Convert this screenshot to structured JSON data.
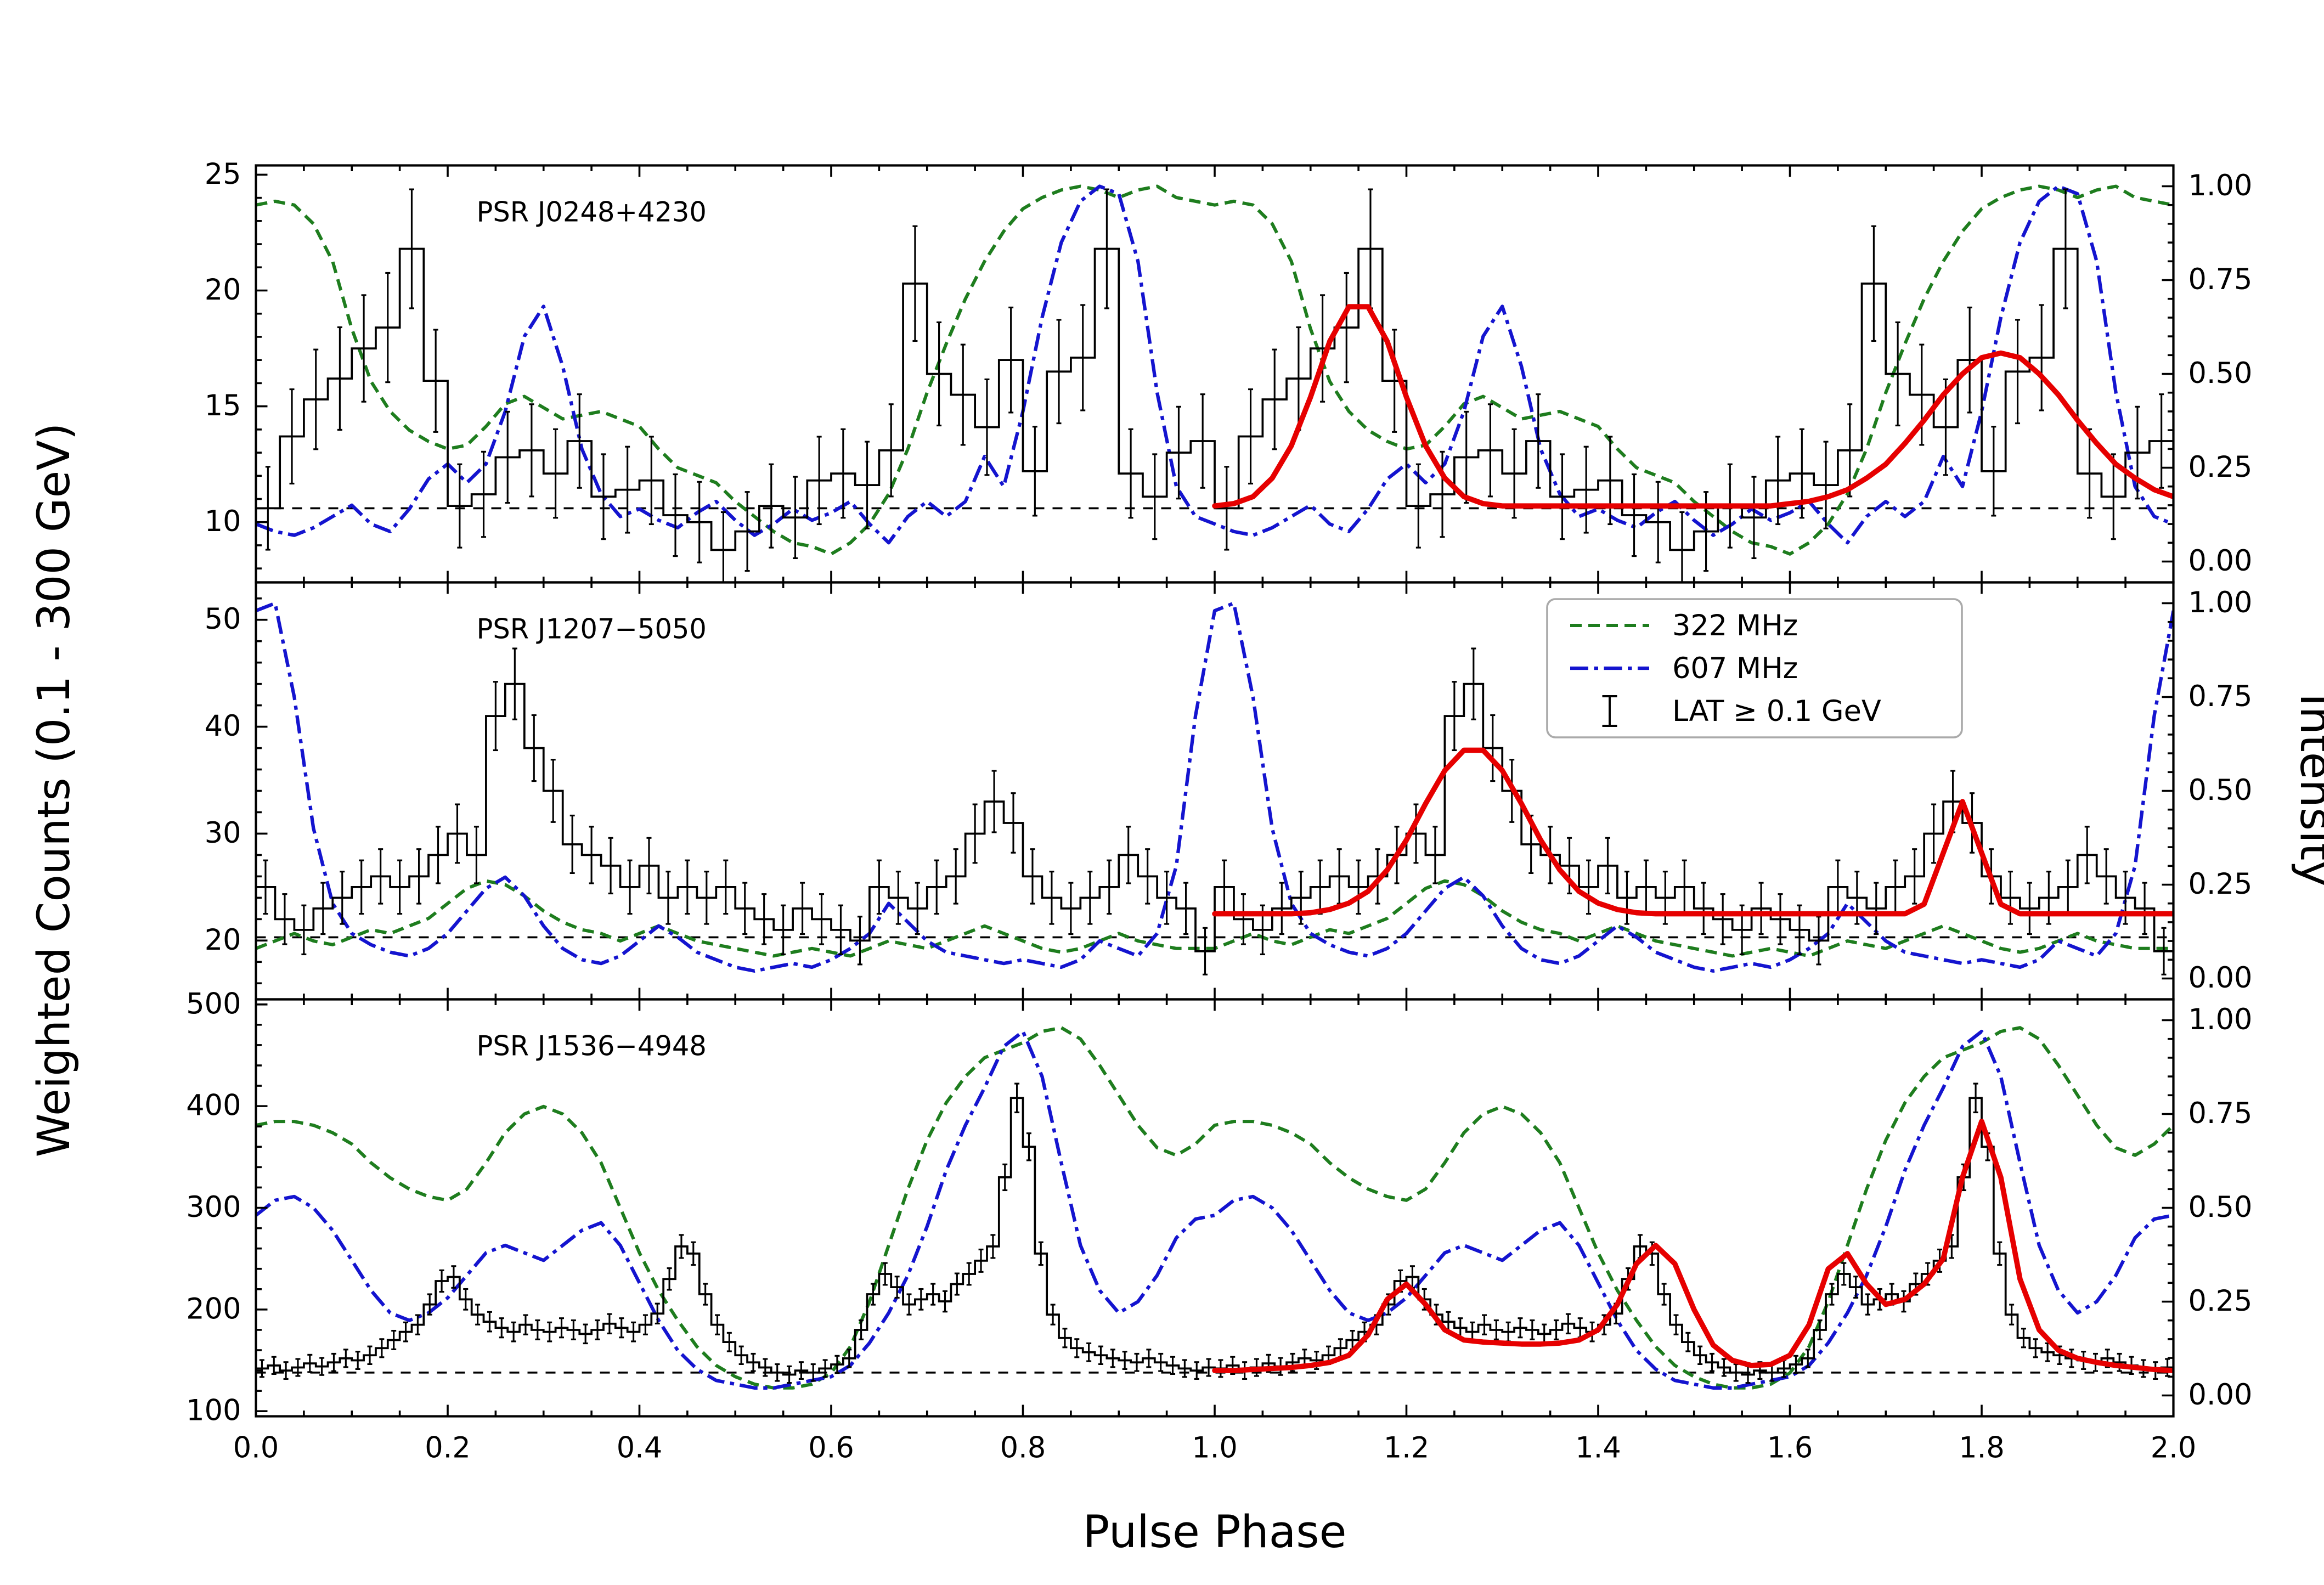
{
  "figure": {
    "xlabel": "Pulse Phase",
    "ylabel_left": "Weighted Counts (0.1 - 300 GeV)",
    "ylabel_right": "Intensity",
    "x_ticks": [
      0.0,
      0.2,
      0.4,
      0.6,
      0.8,
      1.0,
      1.2,
      1.4,
      1.6,
      1.8,
      2.0
    ],
    "x_tick_labels": [
      "0.0",
      "0.2",
      "0.4",
      "0.6",
      "0.8",
      "1.0",
      "1.2",
      "1.4",
      "1.6",
      "1.8",
      "2.0"
    ],
    "intensity_ticks": [
      0.0,
      0.25,
      0.5,
      0.75,
      1.0
    ],
    "intensity_tick_labels": [
      "0.00",
      "0.25",
      "0.50",
      "0.75",
      "1.00"
    ],
    "colors": {
      "radio_322": "#1e7d1e",
      "radio_607": "#1414cf",
      "fit": "#e60000",
      "lat": "#000000",
      "background_line": "#000000"
    },
    "legend": {
      "items": [
        {
          "label": "322 MHz",
          "style": "dashed-green"
        },
        {
          "label": "607 MHz",
          "style": "dashdot-blue"
        },
        {
          "label": "LAT ≥ 0.1 GeV",
          "style": "errorbar-black"
        }
      ]
    }
  },
  "chart_data": [
    {
      "type": "histogram+line",
      "name": "J0248+4230",
      "title": "PSR J0248+4230",
      "x_range": [
        0,
        2
      ],
      "periodic": true,
      "ylim": [
        7.4,
        25.4
      ],
      "yticks": [
        10,
        15,
        20,
        25
      ],
      "ytick_labels": [
        "10",
        "15",
        "20",
        "25"
      ],
      "y_minor_step": 1,
      "background_level": 10.6,
      "hist": {
        "bin_width": 0.025,
        "err_factor": 0.55,
        "values": [
          10.6,
          13.7,
          15.3,
          16.2,
          17.5,
          18.4,
          21.8,
          16.1,
          10.7,
          11.2,
          12.8,
          13.1,
          12.1,
          13.5,
          11.1,
          11.4,
          11.8,
          10.3,
          10.0,
          8.8,
          9.6,
          10.7,
          10.2,
          11.8,
          12.1,
          11.6,
          13.1,
          20.3,
          16.4,
          15.5,
          14.1,
          17.0,
          12.2,
          16.5,
          17.1,
          21.8,
          12.1,
          11.1,
          13.0,
          13.5
        ]
      },
      "radio_322": {
        "phase_step": 0.02,
        "values": [
          0.95,
          0.96,
          0.95,
          0.9,
          0.8,
          0.62,
          0.48,
          0.4,
          0.35,
          0.32,
          0.3,
          0.31,
          0.36,
          0.42,
          0.44,
          0.41,
          0.38,
          0.39,
          0.4,
          0.38,
          0.36,
          0.3,
          0.25,
          0.23,
          0.21,
          0.16,
          0.12,
          0.08,
          0.05,
          0.04,
          0.02,
          0.05,
          0.1,
          0.18,
          0.3,
          0.45,
          0.58,
          0.7,
          0.8,
          0.88,
          0.94,
          0.97,
          0.99,
          1.0,
          0.99,
          0.97,
          0.99,
          1.0,
          0.97,
          0.96,
          0.95
        ]
      },
      "radio_607": {
        "phase_step": 0.02,
        "values": [
          0.1,
          0.08,
          0.07,
          0.09,
          0.12,
          0.15,
          0.1,
          0.08,
          0.14,
          0.22,
          0.26,
          0.21,
          0.26,
          0.4,
          0.6,
          0.68,
          0.52,
          0.3,
          0.18,
          0.12,
          0.14,
          0.11,
          0.09,
          0.13,
          0.16,
          0.11,
          0.07,
          0.1,
          0.14,
          0.11,
          0.13,
          0.16,
          0.1,
          0.05,
          0.12,
          0.16,
          0.12,
          0.16,
          0.28,
          0.2,
          0.4,
          0.65,
          0.85,
          0.96,
          1.0,
          0.98,
          0.8,
          0.45,
          0.2,
          0.12,
          0.1
        ]
      },
      "fit": {
        "x_start": 1.0,
        "phase_step": 0.02,
        "values": [
          10.7,
          10.8,
          11.1,
          11.9,
          13.3,
          15.4,
          17.8,
          19.3,
          19.3,
          17.8,
          15.4,
          13.3,
          11.9,
          11.1,
          10.8,
          10.7,
          10.7,
          10.7,
          10.7,
          10.7,
          10.7,
          10.7,
          10.7,
          10.7,
          10.7,
          10.7,
          10.7,
          10.7,
          10.7,
          10.7,
          10.8,
          10.9,
          11.1,
          11.4,
          11.9,
          12.5,
          13.4,
          14.4,
          15.5,
          16.4,
          17.1,
          17.3,
          17.1,
          16.4,
          15.5,
          14.4,
          13.4,
          12.5,
          11.9,
          11.4,
          11.1
        ]
      }
    },
    {
      "type": "histogram+line",
      "name": "J1207-5050",
      "title": "PSR J1207−5050",
      "x_range": [
        0,
        2
      ],
      "periodic": true,
      "ylim": [
        14.5,
        53.5
      ],
      "yticks": [
        20,
        30,
        40,
        50
      ],
      "ytick_labels": [
        "20",
        "30",
        "40",
        "50"
      ],
      "y_minor_step": 2,
      "background_level": 20.3,
      "hist": {
        "bin_width": 0.02,
        "err_factor": 0.5,
        "values": [
          25,
          22,
          21,
          23,
          24,
          25,
          26,
          25,
          26,
          28,
          30,
          28,
          41,
          44,
          38,
          34,
          29,
          28,
          27,
          25,
          27,
          24,
          25,
          24,
          25,
          23,
          22,
          21,
          23,
          22,
          21,
          20,
          25,
          24,
          23,
          25,
          26,
          30,
          33,
          31,
          26,
          24,
          23,
          24,
          25,
          28,
          26,
          24,
          23,
          19
        ]
      },
      "radio_322": {
        "phase_step": 0.02,
        "values": [
          0.08,
          0.1,
          0.12,
          0.1,
          0.09,
          0.11,
          0.13,
          0.12,
          0.14,
          0.16,
          0.2,
          0.24,
          0.26,
          0.25,
          0.22,
          0.18,
          0.15,
          0.13,
          0.12,
          0.1,
          0.12,
          0.14,
          0.12,
          0.1,
          0.09,
          0.08,
          0.07,
          0.06,
          0.07,
          0.08,
          0.07,
          0.06,
          0.08,
          0.1,
          0.09,
          0.08,
          0.1,
          0.12,
          0.14,
          0.12,
          0.1,
          0.08,
          0.07,
          0.08,
          0.1,
          0.12,
          0.1,
          0.09,
          0.08,
          0.08,
          0.08
        ]
      },
      "radio_607": {
        "phase_step": 0.02,
        "values": [
          0.98,
          1.0,
          0.75,
          0.4,
          0.2,
          0.12,
          0.09,
          0.07,
          0.06,
          0.08,
          0.12,
          0.18,
          0.24,
          0.27,
          0.22,
          0.14,
          0.08,
          0.05,
          0.04,
          0.06,
          0.1,
          0.14,
          0.11,
          0.07,
          0.05,
          0.03,
          0.02,
          0.03,
          0.04,
          0.03,
          0.05,
          0.08,
          0.12,
          0.2,
          0.15,
          0.1,
          0.07,
          0.06,
          0.05,
          0.04,
          0.05,
          0.04,
          0.03,
          0.05,
          0.1,
          0.08,
          0.06,
          0.12,
          0.3,
          0.7,
          0.98
        ]
      },
      "fit": {
        "x_start": 1.0,
        "phase_step": 0.02,
        "values": [
          22.5,
          22.5,
          22.5,
          22.5,
          22.5,
          22.6,
          22.9,
          23.5,
          24.6,
          26.6,
          29.4,
          32.8,
          35.9,
          37.8,
          37.8,
          35.9,
          32.8,
          29.4,
          26.6,
          24.6,
          23.5,
          22.9,
          22.6,
          22.5,
          22.5,
          22.5,
          22.5,
          22.5,
          22.5,
          22.5,
          22.5,
          22.5,
          22.5,
          22.5,
          22.5,
          22.5,
          22.5,
          23.4,
          28.2,
          33.0,
          28.2,
          23.4,
          22.5,
          22.5,
          22.5,
          22.5,
          22.5,
          22.5,
          22.5,
          22.5,
          22.5
        ]
      }
    },
    {
      "type": "histogram+line",
      "name": "J1536-4948",
      "title": "PSR J1536−4948",
      "x_range": [
        0,
        2
      ],
      "periodic": true,
      "ylim": [
        95,
        505
      ],
      "yticks": [
        100,
        200,
        300,
        400,
        500
      ],
      "ytick_labels": [
        "100",
        "200",
        "300",
        "400",
        "500"
      ],
      "y_minor_step": 20,
      "background_level": 138,
      "hist": {
        "bin_width": 0.0125,
        "err_factor": 0.7,
        "values": [
          142,
          145,
          140,
          143,
          147,
          144,
          148,
          152,
          150,
          155,
          162,
          170,
          178,
          185,
          205,
          228,
          232,
          210,
          195,
          188,
          182,
          178,
          185,
          180,
          178,
          182,
          180,
          176,
          180,
          186,
          182,
          178,
          185,
          196,
          230,
          262,
          255,
          215,
          185,
          168,
          155,
          148,
          143,
          138,
          136,
          140,
          138,
          142,
          146,
          152,
          180,
          215,
          235,
          222,
          205,
          210,
          215,
          208,
          225,
          235,
          248,
          262,
          330,
          408,
          360,
          255,
          195,
          172,
          162,
          158,
          155,
          152,
          150,
          148,
          152,
          148,
          145,
          142,
          140,
          143
        ]
      },
      "radio_322": {
        "phase_step": 0.02,
        "values": [
          0.72,
          0.73,
          0.73,
          0.72,
          0.7,
          0.67,
          0.62,
          0.58,
          0.55,
          0.53,
          0.52,
          0.55,
          0.62,
          0.7,
          0.75,
          0.77,
          0.75,
          0.7,
          0.62,
          0.5,
          0.38,
          0.28,
          0.2,
          0.13,
          0.08,
          0.05,
          0.03,
          0.02,
          0.02,
          0.03,
          0.06,
          0.13,
          0.25,
          0.4,
          0.55,
          0.68,
          0.78,
          0.85,
          0.9,
          0.92,
          0.94,
          0.97,
          0.98,
          0.95,
          0.88,
          0.8,
          0.72,
          0.66,
          0.64,
          0.67,
          0.72
        ]
      },
      "radio_607": {
        "phase_step": 0.02,
        "values": [
          0.48,
          0.52,
          0.53,
          0.5,
          0.44,
          0.36,
          0.28,
          0.22,
          0.2,
          0.22,
          0.26,
          0.32,
          0.38,
          0.4,
          0.38,
          0.36,
          0.4,
          0.44,
          0.46,
          0.4,
          0.3,
          0.2,
          0.12,
          0.07,
          0.04,
          0.03,
          0.02,
          0.02,
          0.03,
          0.04,
          0.05,
          0.08,
          0.14,
          0.22,
          0.32,
          0.45,
          0.6,
          0.72,
          0.82,
          0.93,
          0.97,
          0.85,
          0.62,
          0.4,
          0.28,
          0.22,
          0.25,
          0.32,
          0.42,
          0.47,
          0.48
        ]
      },
      "fit": {
        "x_start": 1.0,
        "phase_step": 0.02,
        "values": [
          140,
          140,
          141,
          142,
          143,
          145,
          148,
          155,
          175,
          210,
          225,
          205,
          180,
          170,
          168,
          167,
          166,
          166,
          167,
          170,
          180,
          205,
          245,
          263,
          245,
          200,
          165,
          150,
          145,
          146,
          155,
          185,
          240,
          255,
          225,
          205,
          210,
          225,
          250,
          330,
          385,
          330,
          230,
          180,
          160,
          152,
          148,
          145,
          143,
          141,
          140
        ]
      }
    }
  ]
}
